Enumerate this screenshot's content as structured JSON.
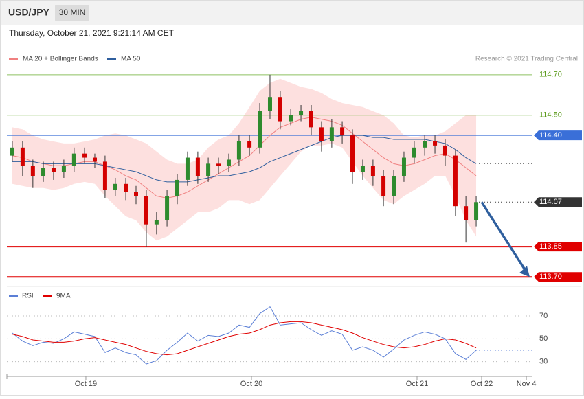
{
  "chart_data": [
    {
      "type": "candlestick",
      "title": "USD/JPY",
      "interval": "30 MIN",
      "subtitle": "Thursday, October 21, 2021 9:21:14 AM CET",
      "source": "Research © 2021 Trading Central",
      "x": [
        -0.444,
        -0.382,
        -0.32,
        -0.257,
        -0.195,
        -0.133,
        -0.071,
        -0.008,
        0.054,
        0.116,
        0.178,
        0.241,
        0.303,
        0.365,
        0.427,
        0.49,
        0.552,
        0.614,
        0.676,
        0.739,
        0.801,
        0.863,
        0.925,
        0.988,
        1.05,
        1.112,
        1.174,
        1.237,
        1.299,
        1.361,
        1.423,
        1.485,
        1.548,
        1.61,
        1.672,
        1.734,
        1.797,
        1.859,
        1.921,
        1.983,
        2.046,
        2.108,
        2.17,
        2.232,
        2.295,
        2.357
      ],
      "open": [
        114.3,
        114.34,
        114.25,
        114.2,
        114.24,
        114.22,
        114.25,
        114.31,
        114.29,
        114.27,
        114.13,
        114.16,
        114.12,
        114.1,
        113.96,
        113.98,
        114.1,
        114.18,
        114.29,
        114.2,
        114.26,
        114.25,
        114.28,
        114.37,
        114.34,
        114.52,
        114.59,
        114.47,
        114.5,
        114.52,
        114.44,
        114.37,
        114.44,
        114.4,
        114.22,
        114.25,
        114.2,
        114.1,
        114.2,
        114.29,
        114.34,
        114.37,
        114.35,
        114.3,
        114.05,
        113.98
      ],
      "high": [
        114.37,
        114.37,
        114.28,
        114.27,
        114.27,
        114.28,
        114.34,
        114.34,
        114.31,
        114.3,
        114.19,
        114.19,
        114.15,
        114.13,
        114.02,
        114.13,
        114.21,
        114.32,
        114.32,
        114.29,
        114.29,
        114.31,
        114.4,
        114.4,
        114.56,
        114.7,
        114.62,
        114.53,
        114.55,
        114.55,
        114.47,
        114.48,
        114.47,
        114.43,
        114.28,
        114.28,
        114.23,
        114.23,
        114.32,
        114.37,
        114.4,
        114.4,
        114.38,
        114.33,
        114.1,
        114.1
      ],
      "low": [
        114.27,
        114.2,
        114.14,
        114.17,
        114.18,
        114.19,
        114.22,
        114.26,
        114.24,
        114.09,
        114.1,
        114.08,
        114.06,
        113.85,
        113.91,
        113.95,
        114.06,
        114.15,
        114.16,
        114.17,
        114.21,
        114.22,
        114.25,
        114.3,
        114.31,
        114.48,
        114.43,
        114.45,
        114.47,
        114.4,
        114.32,
        114.34,
        114.36,
        114.16,
        114.18,
        114.15,
        114.05,
        114.06,
        114.17,
        114.26,
        114.3,
        114.31,
        114.25,
        114.0,
        113.87,
        113.95
      ],
      "close": [
        114.34,
        114.25,
        114.2,
        114.24,
        114.22,
        114.25,
        114.31,
        114.29,
        114.27,
        114.13,
        114.16,
        114.12,
        114.1,
        113.96,
        113.98,
        114.1,
        114.18,
        114.29,
        114.2,
        114.26,
        114.25,
        114.28,
        114.37,
        114.34,
        114.52,
        114.59,
        114.47,
        114.5,
        114.52,
        114.44,
        114.37,
        114.44,
        114.4,
        114.22,
        114.25,
        114.2,
        114.1,
        114.2,
        114.29,
        114.34,
        114.37,
        114.35,
        114.3,
        114.05,
        113.98,
        114.07
      ],
      "up_color": "#2e8b2e",
      "down_color": "#d40000",
      "series": [
        {
          "name": "MA 20 + Bollinger Bands",
          "color": "#f08080",
          "band_color": "#fde0df",
          "values": [
            114.3,
            114.29,
            114.27,
            114.26,
            114.25,
            114.25,
            114.26,
            114.27,
            114.27,
            114.25,
            114.23,
            114.2,
            114.18,
            114.14,
            114.1,
            114.09,
            114.1,
            114.12,
            114.15,
            114.18,
            114.21,
            114.24,
            114.27,
            114.3,
            114.35,
            114.4,
            114.44,
            114.46,
            114.48,
            114.49,
            114.48,
            114.47,
            114.45,
            114.41,
            114.37,
            114.33,
            114.29,
            114.26,
            114.25,
            114.26,
            114.28,
            114.3,
            114.31,
            114.28,
            114.24,
            114.2
          ],
          "upper": [
            114.44,
            114.43,
            114.4,
            114.38,
            114.37,
            114.36,
            114.36,
            114.37,
            114.38,
            114.4,
            114.41,
            114.4,
            114.38,
            114.36,
            114.32,
            114.28,
            114.26,
            114.26,
            114.28,
            114.34,
            114.38,
            114.4,
            114.46,
            114.54,
            114.62,
            114.66,
            114.68,
            114.66,
            114.64,
            114.63,
            114.61,
            114.58,
            114.56,
            114.55,
            114.54,
            114.52,
            114.5,
            114.46,
            114.4,
            114.39,
            114.4,
            114.4,
            114.42,
            114.46,
            114.5,
            114.5
          ],
          "lower": [
            114.16,
            114.15,
            114.14,
            114.14,
            114.13,
            114.14,
            114.16,
            114.17,
            114.16,
            114.1,
            114.05,
            114.0,
            113.98,
            113.92,
            113.88,
            113.9,
            113.94,
            113.98,
            114.02,
            114.02,
            114.04,
            114.08,
            114.08,
            114.06,
            114.08,
            114.14,
            114.2,
            114.26,
            114.32,
            114.35,
            114.35,
            114.36,
            114.34,
            114.27,
            114.2,
            114.14,
            114.08,
            114.06,
            114.1,
            114.13,
            114.16,
            114.2,
            114.2,
            114.1,
            113.98,
            113.9
          ]
        },
        {
          "name": "MA 50",
          "color": "#2f5f9e",
          "values": [
            114.27,
            114.27,
            114.27,
            114.26,
            114.26,
            114.26,
            114.26,
            114.26,
            114.26,
            114.25,
            114.24,
            114.23,
            114.22,
            114.2,
            114.18,
            114.17,
            114.17,
            114.17,
            114.18,
            114.19,
            114.2,
            114.2,
            114.21,
            114.22,
            114.24,
            114.27,
            114.29,
            114.31,
            114.33,
            114.35,
            114.37,
            114.39,
            114.4,
            114.4,
            114.4,
            114.39,
            114.39,
            114.38,
            114.38,
            114.38,
            114.38,
            114.37,
            114.36,
            114.33,
            114.29,
            114.26
          ]
        }
      ],
      "levels": [
        {
          "value": 114.7,
          "label": "114.70",
          "color": "#8dc060",
          "text_color": "#5a9a1a",
          "tag": "text",
          "line": "solid",
          "emphasis": false
        },
        {
          "value": 114.5,
          "label": "114.50",
          "color": "#8dc060",
          "text_color": "#5a9a1a",
          "tag": "text",
          "line": "solid",
          "emphasis": false
        },
        {
          "value": 114.4,
          "label": "114.40",
          "color": "#3a6fd8",
          "text_color": "#ffffff",
          "tag": "box",
          "line": "solid",
          "emphasis": false
        },
        {
          "value": 114.07,
          "label": "114.07",
          "color": "#333333",
          "text_color": "#ffffff",
          "tag": "box",
          "line": "dotted",
          "emphasis": false
        },
        {
          "value": 113.85,
          "label": "113.85",
          "color": "#e00000",
          "text_color": "#ffffff",
          "tag": "box",
          "line": "solid",
          "emphasis": true
        },
        {
          "value": 113.7,
          "label": "113.70",
          "color": "#e00000",
          "text_color": "#ffffff",
          "tag": "box",
          "line": "solid",
          "emphasis": true
        }
      ],
      "arrow": {
        "from": 114.07,
        "to": 113.7,
        "color": "#2f5f9e"
      },
      "xlim": [
        -0.477,
        2.697
      ],
      "ylim": [
        113.66,
        114.73
      ]
    },
    {
      "type": "line",
      "x": [
        -0.444,
        -0.382,
        -0.32,
        -0.257,
        -0.195,
        -0.133,
        -0.071,
        -0.008,
        0.054,
        0.116,
        0.178,
        0.241,
        0.303,
        0.365,
        0.427,
        0.49,
        0.552,
        0.614,
        0.676,
        0.739,
        0.801,
        0.863,
        0.925,
        0.988,
        1.05,
        1.112,
        1.174,
        1.237,
        1.299,
        1.361,
        1.423,
        1.485,
        1.548,
        1.61,
        1.672,
        1.734,
        1.797,
        1.859,
        1.921,
        1.983,
        2.046,
        2.108,
        2.17,
        2.232,
        2.295,
        2.357
      ],
      "series": [
        {
          "name": "RSI",
          "color": "#5b7fd6",
          "values": [
            55,
            48,
            44,
            47,
            46,
            50,
            56,
            54,
            52,
            38,
            42,
            38,
            36,
            28,
            31,
            40,
            47,
            55,
            48,
            53,
            52,
            55,
            62,
            60,
            72,
            78,
            62,
            63,
            64,
            58,
            53,
            57,
            54,
            40,
            43,
            40,
            34,
            41,
            49,
            53,
            56,
            54,
            50,
            37,
            32,
            40
          ]
        },
        {
          "name": "9MA",
          "color": "#e00000",
          "values": [
            54,
            52,
            49,
            48,
            47,
            47,
            48,
            50,
            51,
            49,
            47,
            45,
            42,
            39,
            37,
            36,
            37,
            40,
            43,
            46,
            49,
            52,
            54,
            55,
            58,
            62,
            64,
            65,
            65,
            64,
            62,
            60,
            58,
            55,
            51,
            48,
            45,
            43,
            42,
            43,
            45,
            48,
            50,
            49,
            46,
            42
          ]
        }
      ],
      "xlim": [
        -0.477,
        2.697
      ],
      "ylim": [
        19,
        82
      ],
      "yticks": [
        30,
        50,
        70
      ],
      "grid": true,
      "xticks": [
        {
          "value": 0,
          "label": "Oct 19"
        },
        {
          "value": 1,
          "label": "Oct 20"
        },
        {
          "value": 2,
          "label": "Oct 21"
        },
        {
          "value": 2.39,
          "label": "Oct 22"
        },
        {
          "value": 2.66,
          "label": "Nov 4"
        }
      ]
    }
  ]
}
